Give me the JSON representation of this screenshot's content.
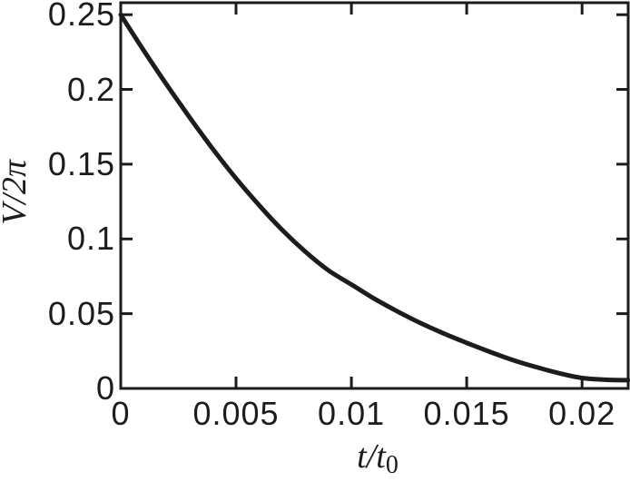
{
  "figure": {
    "background": "#ffffff"
  },
  "chart_data": {
    "type": "line",
    "title": "",
    "xlabel": {
      "text": "t/t",
      "sub": "0"
    },
    "ylabel": "V/2π",
    "xlim": [
      0,
      0.022
    ],
    "ylim": [
      0,
      0.258
    ],
    "grid": false,
    "legend": false,
    "axis_color": "#1c1c1c",
    "background": "#ffffff",
    "xticks": {
      "values": [
        0,
        0.005,
        0.01,
        0.015,
        0.02
      ],
      "labels": [
        "0",
        "0.005",
        "0.01",
        "0.015",
        "0.02"
      ]
    },
    "yticks": {
      "values": [
        0,
        0.05,
        0.1,
        0.15,
        0.2,
        0.25
      ],
      "labels": [
        "0",
        "0.05",
        "0.1",
        "0.15",
        "0.2",
        "0.25"
      ]
    },
    "series": [
      {
        "name": "decaying-voltage-curve",
        "color": "#1c1c1c",
        "line_width": 5,
        "x": [
          0.0,
          0.001,
          0.002,
          0.003,
          0.004,
          0.005,
          0.006,
          0.007,
          0.008,
          0.009,
          0.01,
          0.011,
          0.012,
          0.013,
          0.014,
          0.015,
          0.016,
          0.017,
          0.018,
          0.019,
          0.02,
          0.021,
          0.022
        ],
        "y": [
          0.25,
          0.226,
          0.203,
          0.181,
          0.16,
          0.1405,
          0.1225,
          0.106,
          0.0915,
          0.079,
          0.0695,
          0.06,
          0.0515,
          0.0437,
          0.0368,
          0.0305,
          0.0245,
          0.019,
          0.0143,
          0.0102,
          0.007,
          0.0058,
          0.0055
        ]
      }
    ]
  }
}
